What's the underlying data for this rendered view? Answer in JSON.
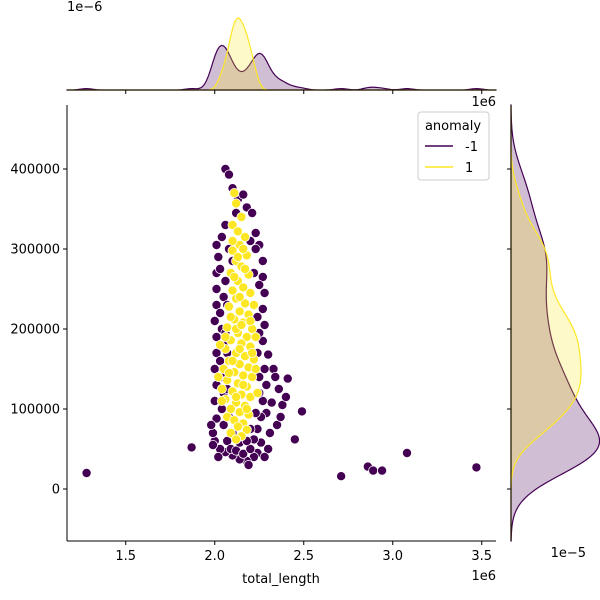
{
  "chart_data": {
    "type": "scatter",
    "xlabel": "total_length",
    "ylabel": "",
    "x_offset_label": "1e6",
    "y_offset_label": "",
    "top_marginal_offset_label": "1e−6",
    "right_marginal_offset_label": "1e−5",
    "right_marginal_top_label": "1e6",
    "xlim": [
      1.17,
      3.58
    ],
    "ylim": [
      -65000,
      480000
    ],
    "x_ticks": [
      1.5,
      2.0,
      2.5,
      3.0,
      3.5
    ],
    "x_tick_labels": [
      "1.5",
      "2.0",
      "2.5",
      "3.0",
      "3.5"
    ],
    "y_ticks": [
      0,
      100000,
      200000,
      300000,
      400000
    ],
    "y_tick_labels": [
      "0",
      "100000",
      "200000",
      "300000",
      "400000"
    ],
    "grid": false,
    "legend": {
      "title": "anomaly",
      "placement": "top-right",
      "entries": [
        {
          "label": "-1",
          "color": "#440154"
        },
        {
          "label": "1",
          "color": "#fde725"
        }
      ]
    },
    "series": [
      {
        "name": "-1",
        "color": "#440154",
        "points": [
          [
            1.28,
            20000
          ],
          [
            1.87,
            52000
          ],
          [
            2.71,
            16000
          ],
          [
            2.86,
            28000
          ],
          [
            2.89,
            23000
          ],
          [
            2.94,
            23000
          ],
          [
            3.08,
            45000
          ],
          [
            3.47,
            27000
          ],
          [
            2.49,
            97000
          ],
          [
            2.45,
            62000
          ],
          [
            2.35,
            80000
          ],
          [
            2.38,
            105000
          ],
          [
            2.4,
            115000
          ],
          [
            2.36,
            125000
          ],
          [
            2.41,
            138000
          ],
          [
            2.33,
            150000
          ],
          [
            2.29,
            95000
          ],
          [
            2.31,
            70000
          ],
          [
            2.26,
            58000
          ],
          [
            2.24,
            45000
          ],
          [
            2.22,
            40000
          ],
          [
            2.18,
            35000
          ],
          [
            2.14,
            37000
          ],
          [
            2.1,
            42000
          ],
          [
            2.06,
            46000
          ],
          [
            2.03,
            50000
          ],
          [
            2.0,
            60000
          ],
          [
            1.99,
            70000
          ],
          [
            2.01,
            88000
          ],
          [
            2.0,
            110000
          ],
          [
            2.01,
            130000
          ],
          [
            2.0,
            150000
          ],
          [
            2.01,
            170000
          ],
          [
            2.01,
            190000
          ],
          [
            2.0,
            210000
          ],
          [
            2.01,
            230000
          ],
          [
            2.01,
            250000
          ],
          [
            2.01,
            270000
          ],
          [
            2.02,
            290000
          ],
          [
            2.01,
            305000
          ],
          [
            2.06,
            400000
          ],
          [
            2.08,
            393000
          ],
          [
            2.1,
            376000
          ],
          [
            2.13,
            362000
          ],
          [
            2.16,
            368000
          ],
          [
            2.18,
            352000
          ],
          [
            2.21,
            345000
          ],
          [
            2.12,
            345000
          ],
          [
            2.06,
            330000
          ],
          [
            2.04,
            315000
          ],
          [
            2.23,
            320000
          ],
          [
            2.25,
            305000
          ],
          [
            2.27,
            285000
          ],
          [
            2.27,
            265000
          ],
          [
            2.28,
            245000
          ],
          [
            2.27,
            225000
          ],
          [
            2.28,
            205000
          ],
          [
            2.27,
            185000
          ],
          [
            2.3,
            168000
          ],
          [
            2.28,
            150000
          ],
          [
            2.29,
            130000
          ],
          [
            2.27,
            110000
          ],
          [
            2.26,
            90000
          ],
          [
            2.24,
            75000
          ],
          [
            2.05,
            240000
          ],
          [
            2.03,
            220000
          ],
          [
            2.04,
            200000
          ],
          [
            2.05,
            180000
          ],
          [
            2.03,
            160000
          ],
          [
            2.04,
            140000
          ],
          [
            2.05,
            120000
          ],
          [
            2.04,
            100000
          ],
          [
            2.05,
            80000
          ],
          [
            2.07,
            60000
          ],
          [
            2.09,
            50000
          ],
          [
            2.12,
            48000
          ],
          [
            2.16,
            44000
          ],
          [
            2.2,
            50000
          ],
          [
            2.22,
            62000
          ],
          [
            2.23,
            300000
          ],
          [
            2.2,
            310000
          ],
          [
            2.08,
            300000
          ],
          [
            2.1,
            285000
          ],
          [
            2.22,
            270000
          ],
          [
            2.06,
            260000
          ],
          [
            2.25,
            255000
          ],
          [
            2.07,
            230000
          ],
          [
            2.24,
            215000
          ],
          [
            2.06,
            195000
          ],
          [
            2.25,
            195000
          ],
          [
            2.07,
            170000
          ],
          [
            2.24,
            170000
          ],
          [
            2.06,
            145000
          ],
          [
            2.25,
            140000
          ],
          [
            2.07,
            125000
          ],
          [
            2.25,
            120000
          ],
          [
            2.08,
            90000
          ],
          [
            2.23,
            95000
          ],
          [
            2.1,
            70000
          ],
          [
            2.2,
            75000
          ],
          [
            2.14,
            58000
          ],
          [
            2.18,
            60000
          ],
          [
            2.03,
            275000
          ],
          [
            2.32,
            108000
          ],
          [
            2.34,
            140000
          ],
          [
            2.37,
            90000
          ],
          [
            1.98,
            80000
          ],
          [
            1.99,
            55000
          ],
          [
            2.02,
            40000
          ],
          [
            2.3,
            50000
          ],
          [
            2.28,
            40000
          ],
          [
            2.19,
            30000
          ]
        ]
      },
      {
        "name": "1",
        "color": "#fde725",
        "points": [
          [
            2.11,
            370000
          ],
          [
            2.12,
            357000
          ],
          [
            2.15,
            340000
          ],
          [
            2.1,
            330000
          ],
          [
            2.13,
            322000
          ],
          [
            2.17,
            315000
          ],
          [
            2.14,
            305000
          ],
          [
            2.1,
            298000
          ],
          [
            2.18,
            292000
          ],
          [
            2.12,
            285000
          ],
          [
            2.15,
            278000
          ],
          [
            2.09,
            270000
          ],
          [
            2.19,
            268000
          ],
          [
            2.13,
            260000
          ],
          [
            2.16,
            252000
          ],
          [
            2.1,
            248000
          ],
          [
            2.2,
            245000
          ],
          [
            2.12,
            238000
          ],
          [
            2.17,
            232000
          ],
          [
            2.08,
            228000
          ],
          [
            2.14,
            222000
          ],
          [
            2.19,
            218000
          ],
          [
            2.11,
            212000
          ],
          [
            2.16,
            208000
          ],
          [
            2.07,
            202000
          ],
          [
            2.21,
            200000
          ],
          [
            2.13,
            195000
          ],
          [
            2.18,
            190000
          ],
          [
            2.09,
            186000
          ],
          [
            2.15,
            182000
          ],
          [
            2.2,
            178000
          ],
          [
            2.06,
            175000
          ],
          [
            2.12,
            170000
          ],
          [
            2.17,
            166000
          ],
          [
            2.22,
            162000
          ],
          [
            2.08,
            160000
          ],
          [
            2.14,
            156000
          ],
          [
            2.19,
            152000
          ],
          [
            2.05,
            150000
          ],
          [
            2.11,
            146000
          ],
          [
            2.16,
            142000
          ],
          [
            2.21,
            140000
          ],
          [
            2.07,
            136000
          ],
          [
            2.13,
            132000
          ],
          [
            2.18,
            128000
          ],
          [
            2.04,
            125000
          ],
          [
            2.1,
            122000
          ],
          [
            2.15,
            118000
          ],
          [
            2.2,
            115000
          ],
          [
            2.06,
            112000
          ],
          [
            2.12,
            108000
          ],
          [
            2.17,
            104000
          ],
          [
            2.09,
            100000
          ],
          [
            2.14,
            96000
          ],
          [
            2.19,
            93000
          ],
          [
            2.07,
            90000
          ],
          [
            2.11,
            86000
          ],
          [
            2.16,
            82000
          ],
          [
            2.13,
            78000
          ],
          [
            2.18,
            74000
          ],
          [
            2.09,
            70000
          ],
          [
            2.15,
            66000
          ],
          [
            2.12,
            62000
          ],
          [
            2.03,
            180000
          ],
          [
            2.02,
            140000
          ],
          [
            2.23,
            190000
          ],
          [
            2.23,
            150000
          ],
          [
            2.22,
            230000
          ],
          [
            2.1,
            310000
          ],
          [
            2.16,
            300000
          ],
          [
            2.12,
            200000
          ],
          [
            2.14,
            175000
          ],
          [
            2.1,
            160000
          ],
          [
            2.16,
            130000
          ],
          [
            2.12,
            115000
          ],
          [
            2.18,
            100000
          ],
          [
            2.08,
            145000
          ],
          [
            2.2,
            210000
          ],
          [
            2.06,
            190000
          ],
          [
            2.04,
            110000
          ],
          [
            2.24,
            120000
          ],
          [
            2.14,
            240000
          ],
          [
            2.11,
            265000
          ],
          [
            2.17,
            275000
          ],
          [
            2.13,
            290000
          ],
          [
            2.09,
            215000
          ],
          [
            2.15,
            205000
          ],
          [
            2.21,
            170000
          ]
        ]
      }
    ]
  }
}
